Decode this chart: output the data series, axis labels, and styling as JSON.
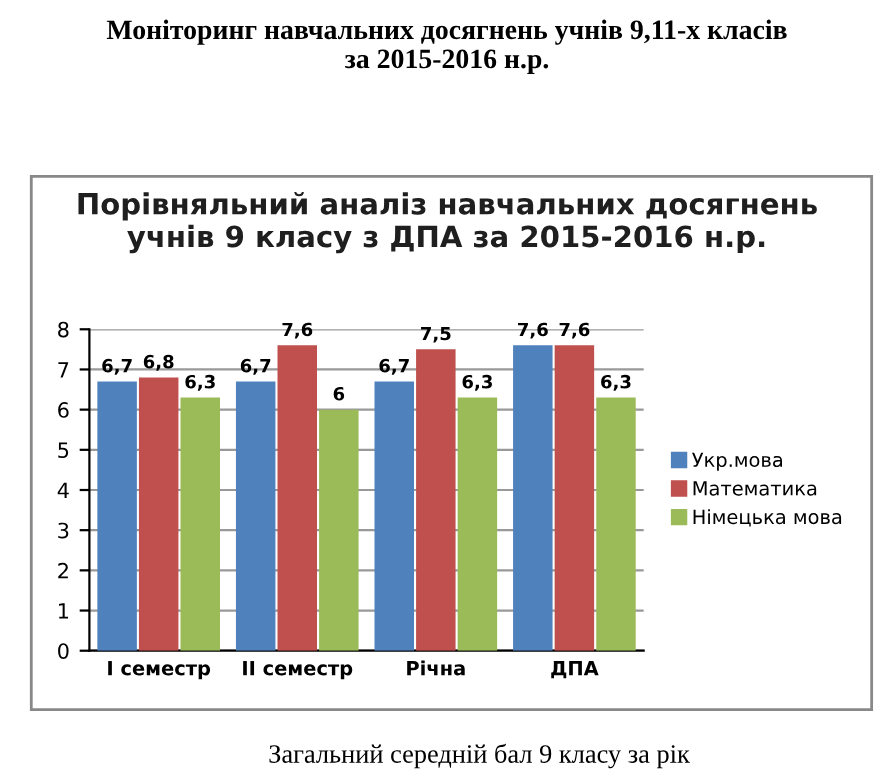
{
  "chart_data": {
    "type": "bar",
    "title": "Моніторинг навчальних досягнень учнів 9,11-х класів\nза 2015-2016 н.р.",
    "subtitle": "Порівняльний аналіз навчальних досягнень\nучнів 9 класу з ДПА за 2015-2016 н.р.",
    "annotations": [
      "Загальний середній бал 9 класу за рік"
    ],
    "categories": [
      "І семестр",
      "ІІ семестр",
      "Річна",
      "ДПА"
    ],
    "series": [
      {
        "name": "Укр.мова",
        "color": "#4f81bd",
        "values": [
          6.7,
          6.7,
          6.7,
          7.6
        ],
        "value_labels": [
          "6,7",
          "6,7",
          "6,7",
          "7,6"
        ]
      },
      {
        "name": "Математика",
        "color": "#c0504d",
        "values": [
          6.8,
          7.6,
          7.5,
          7.6
        ],
        "value_labels": [
          "6,8",
          "7,6",
          "7,5",
          "7,6"
        ]
      },
      {
        "name": "Німецька мова",
        "color": "#9bbb59",
        "values": [
          6.3,
          6,
          6.3,
          6.3
        ],
        "value_labels": [
          "6,3",
          "6",
          "6,3",
          "6,3"
        ]
      }
    ],
    "ylim": [
      0,
      8
    ],
    "yticks": [
      0,
      1,
      2,
      3,
      4,
      5,
      6,
      7,
      8
    ],
    "grid": "y",
    "legend": "right"
  }
}
